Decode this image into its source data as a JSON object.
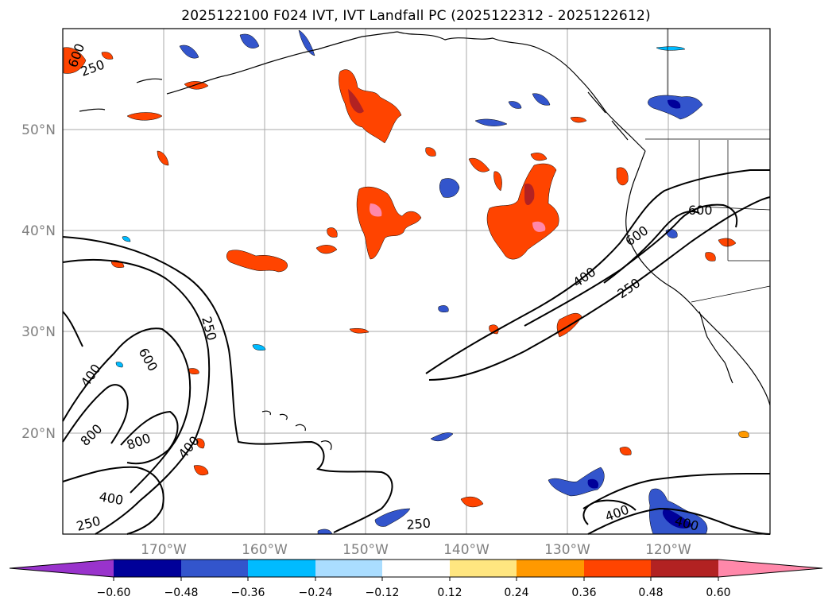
{
  "title": "2025122100 F024 IVT, IVT Landfall PC (2025122312 - 2025122612)",
  "map": {
    "lat_labels": [
      "50°N",
      "40°N",
      "30°N",
      "20°N"
    ],
    "lon_labels": [
      "170°W",
      "160°W",
      "150°W",
      "140°W",
      "130°W",
      "120°W"
    ],
    "lat_values": [
      50,
      40,
      30,
      20
    ],
    "lon_values": [
      -170,
      -160,
      -150,
      -140,
      -130,
      -120
    ],
    "lat_range": [
      10,
      60
    ],
    "lon_range": [
      -180,
      -110
    ],
    "ivt_contour_levels": [
      250,
      400,
      600,
      800
    ],
    "contour_labels": [
      "600",
      "250",
      "400",
      "600",
      "800",
      "800",
      "400",
      "400",
      "250",
      "250",
      "600",
      "400",
      "250",
      "600",
      "250",
      "400"
    ]
  },
  "colorbar": {
    "ticks": [
      "−0.60",
      "−0.48",
      "−0.36",
      "−0.24",
      "−0.12",
      "0.12",
      "0.24",
      "0.36",
      "0.48",
      "0.60"
    ],
    "colors": [
      "#9933cc",
      "#000099",
      "#3355cc",
      "#00bbff",
      "#aaddff",
      "#ffffff",
      "#ffe680",
      "#ff9900",
      "#ff4400",
      "#b22222",
      "#ff88aa"
    ]
  }
}
